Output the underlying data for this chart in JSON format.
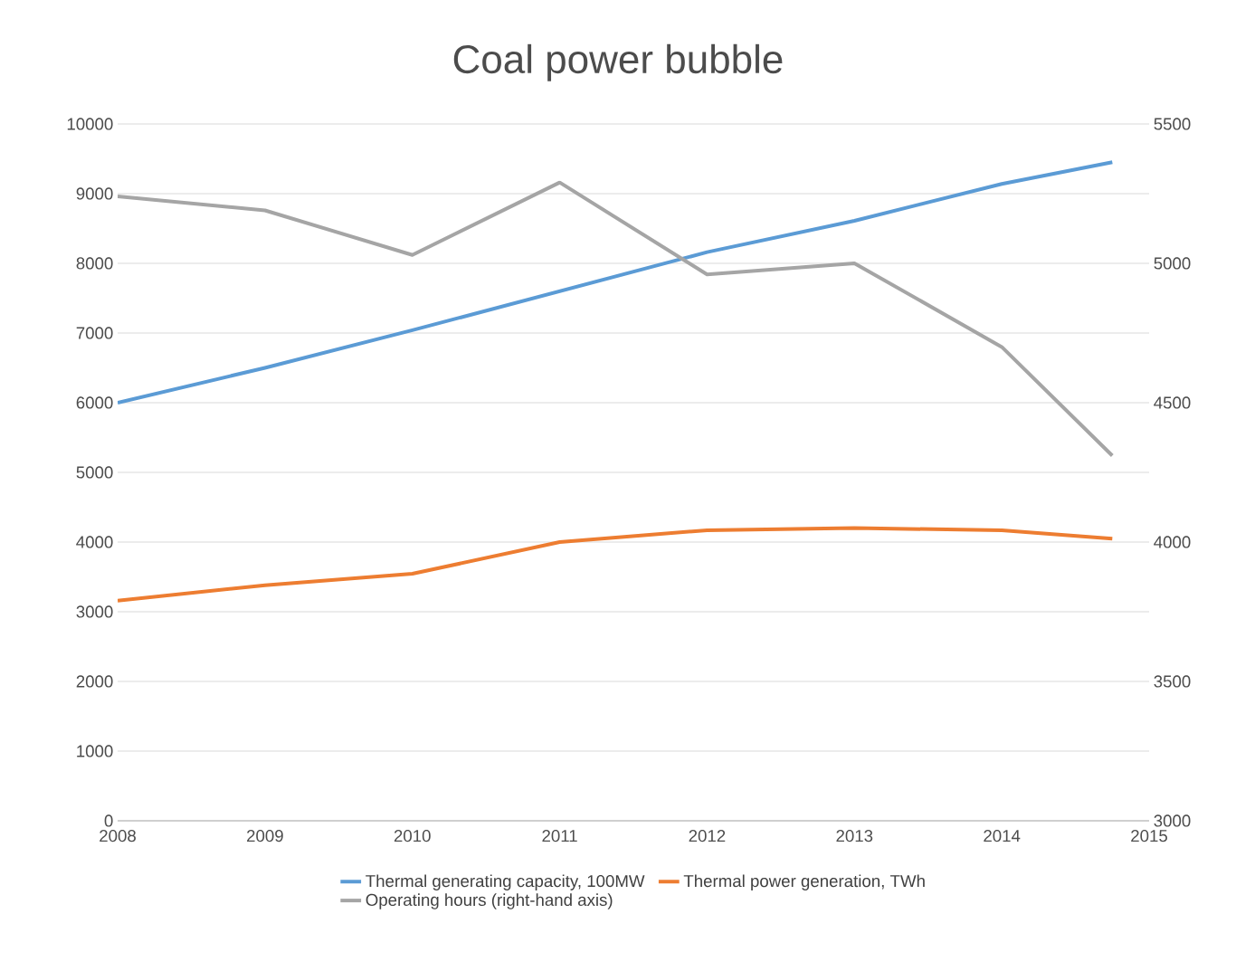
{
  "chart_data": {
    "type": "line",
    "title": "Coal power bubble",
    "x": [
      2008,
      2009,
      2010,
      2011,
      2012,
      2013,
      2014,
      2014.75
    ],
    "series": [
      {
        "name": "Thermal generating capacity, 100MW",
        "color": "#5b9bd5",
        "values": [
          6000,
          6500,
          7040,
          7600,
          8160,
          8610,
          9140,
          9450
        ]
      },
      {
        "name": "Thermal power generation, TWh",
        "color": "#ed7d31",
        "values": [
          3160,
          3380,
          3545,
          4000,
          4170,
          4200,
          4170,
          4050
        ]
      },
      {
        "name": "Operating hours (right-hand axis)",
        "color": "#a5a5a5",
        "axis": "y2",
        "values": [
          5240,
          5190,
          5030,
          5290,
          4960,
          5000,
          4700,
          4310
        ]
      }
    ],
    "xlim": [
      2008,
      2015
    ],
    "xticks": [
      2008,
      2009,
      2010,
      2011,
      2012,
      2013,
      2014,
      2015
    ],
    "ylim": [
      0,
      10000
    ],
    "yticks": [
      0,
      1000,
      2000,
      3000,
      4000,
      5000,
      6000,
      7000,
      8000,
      9000,
      10000
    ],
    "y2lim": [
      3000,
      5500
    ],
    "y2ticks": [
      3000,
      3500,
      4000,
      4500,
      5000,
      5500
    ],
    "grid": "y",
    "legend": "bottom"
  }
}
